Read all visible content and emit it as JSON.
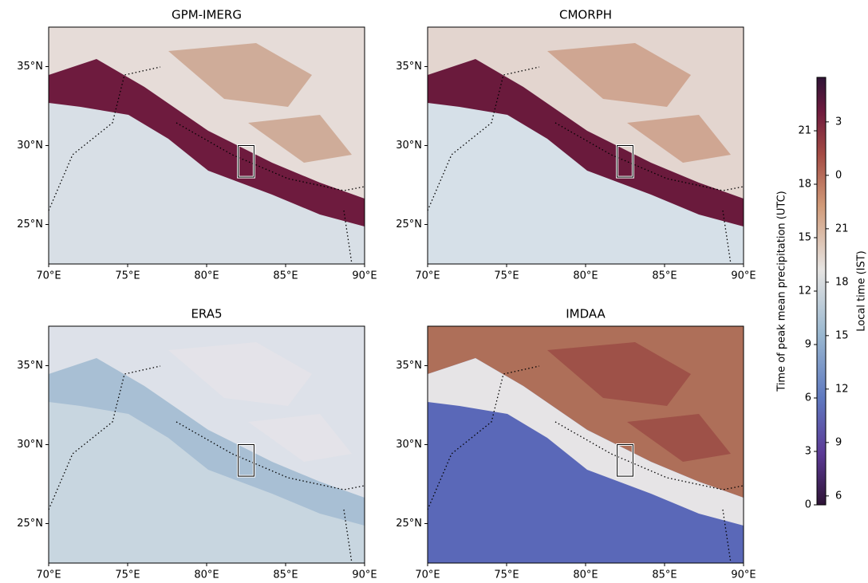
{
  "panels": [
    {
      "title": "GPM-IMERG"
    },
    {
      "title": "CMORPH"
    },
    {
      "title": "ERA5"
    },
    {
      "title": "IMDAA"
    }
  ],
  "xlim": [
    70,
    90
  ],
  "ylim": [
    22.5,
    37.5
  ],
  "xticks": [
    {
      "value": 70,
      "label": "70°E"
    },
    {
      "value": 75,
      "label": "75°E"
    },
    {
      "value": 80,
      "label": "80°E"
    },
    {
      "value": 85,
      "label": "85°E"
    },
    {
      "value": 90,
      "label": "90°E"
    }
  ],
  "yticks": [
    {
      "value": 25,
      "label": "25°N"
    },
    {
      "value": 30,
      "label": "30°N"
    },
    {
      "value": 35,
      "label": "35°N"
    }
  ],
  "region": {
    "lon": [
      82,
      83
    ],
    "lat": [
      28,
      30
    ]
  },
  "colorbar": {
    "label": "Time of peak mean precipitation (UTC)",
    "label2": "Local time (IST)",
    "lim": [
      0,
      24
    ],
    "ticks": [
      0,
      3,
      6,
      9,
      12,
      15,
      18,
      21
    ],
    "ticks2": [
      {
        "value": 0.5,
        "label": "6"
      },
      {
        "value": 3.5,
        "label": "9"
      },
      {
        "value": 6.5,
        "label": "12"
      },
      {
        "value": 9.5,
        "label": "15"
      },
      {
        "value": 12.5,
        "label": "18"
      },
      {
        "value": 15.5,
        "label": "21"
      },
      {
        "value": 18.5,
        "label": "0"
      },
      {
        "value": 21.5,
        "label": "3"
      }
    ]
  }
}
